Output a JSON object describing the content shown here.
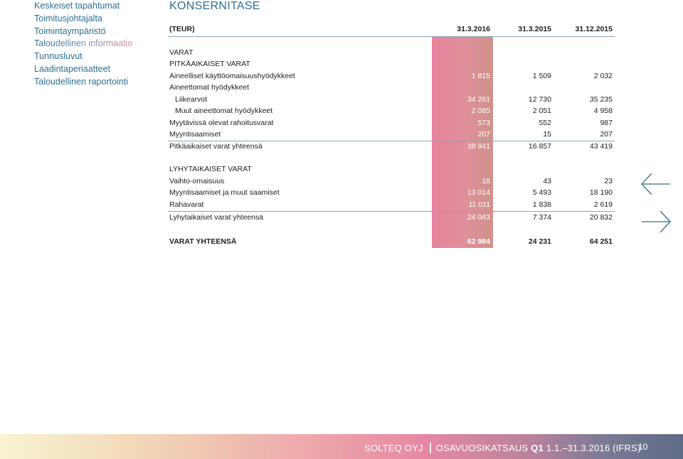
{
  "nav": {
    "items": [
      {
        "label": "Keskeiset tapahtumat"
      },
      {
        "label": "Toimitusjohtajalta"
      },
      {
        "label": "Toimintaympäristö"
      },
      {
        "label": "Taloudellinen informaatio"
      },
      {
        "label": "Tunnusluvut"
      },
      {
        "label": "Laadintaperiaatteet"
      },
      {
        "label": "Taloudellinen raportointi"
      }
    ],
    "active_index": 3
  },
  "title": "KONSERNITASE",
  "table": {
    "header": {
      "label": "(TEUR)",
      "c1": "31.3.2016",
      "c2": "31.3.2015",
      "c3": "31.12.2015"
    },
    "rows": [
      {
        "label": "VARAT",
        "c1": "",
        "c2": "",
        "c3": ""
      },
      {
        "label": "PITKÄAIKAISET VARAT",
        "c1": "",
        "c2": "",
        "c3": ""
      },
      {
        "label": "Aineelliset käyttöomaisuushyödykkeet",
        "c1": "1 815",
        "c2": "1 509",
        "c3": "2 032"
      },
      {
        "label": "Aineettomat hyödykkeet",
        "c1": "",
        "c2": "",
        "c3": ""
      },
      {
        "label": "Liikearvot",
        "c1": "34 261",
        "c2": "12 730",
        "c3": "35 235"
      },
      {
        "label": "Muut aineettomat hyödykkeet",
        "c1": "2 085",
        "c2": "2 051",
        "c3": "4 958"
      },
      {
        "label": "Myytävissä olevat rahoitusvarat",
        "c1": "573",
        "c2": "552",
        "c3": "987"
      },
      {
        "label": "Myyntisaamiset",
        "c1": "207",
        "c2": "15",
        "c3": "207"
      },
      {
        "label": "Pitkäaikaiset varat yhteensä",
        "c1": "38 941",
        "c2": "16 857",
        "c3": "43 419"
      },
      {
        "label": "LYHYTAIKAISET VARAT",
        "c1": "",
        "c2": "",
        "c3": ""
      },
      {
        "label": "Vaihto-omaisuus",
        "c1": "18",
        "c2": "43",
        "c3": "23"
      },
      {
        "label": "Myyntisaamiset ja muut saamiset",
        "c1": "13 014",
        "c2": "5 493",
        "c3": "18 190"
      },
      {
        "label": "Rahavarat",
        "c1": "11 011",
        "c2": "1 838",
        "c3": "2 619"
      },
      {
        "label": "Lyhytaikaiset varat yhteensä",
        "c1": "24 043",
        "c2": "7 374",
        "c3": "20 832"
      },
      {
        "label": "VARAT YHTEENSÄ",
        "c1": "62 984",
        "c2": "24 231",
        "c3": "64 251"
      }
    ]
  },
  "arrows": {
    "prev_icon": "arrow-left-icon",
    "next_icon": "arrow-right-icon"
  },
  "footer": {
    "company": "SOLTEQ OYJ",
    "report_prefix": "OSAVUOSIKATSAUS",
    "report_bold": "Q1",
    "report_period": "1.1.–31.3.2016 (IFRS)",
    "page_number": "10"
  },
  "colors": {
    "accent": "#2f6f94",
    "highlight": "#e08f9b"
  }
}
